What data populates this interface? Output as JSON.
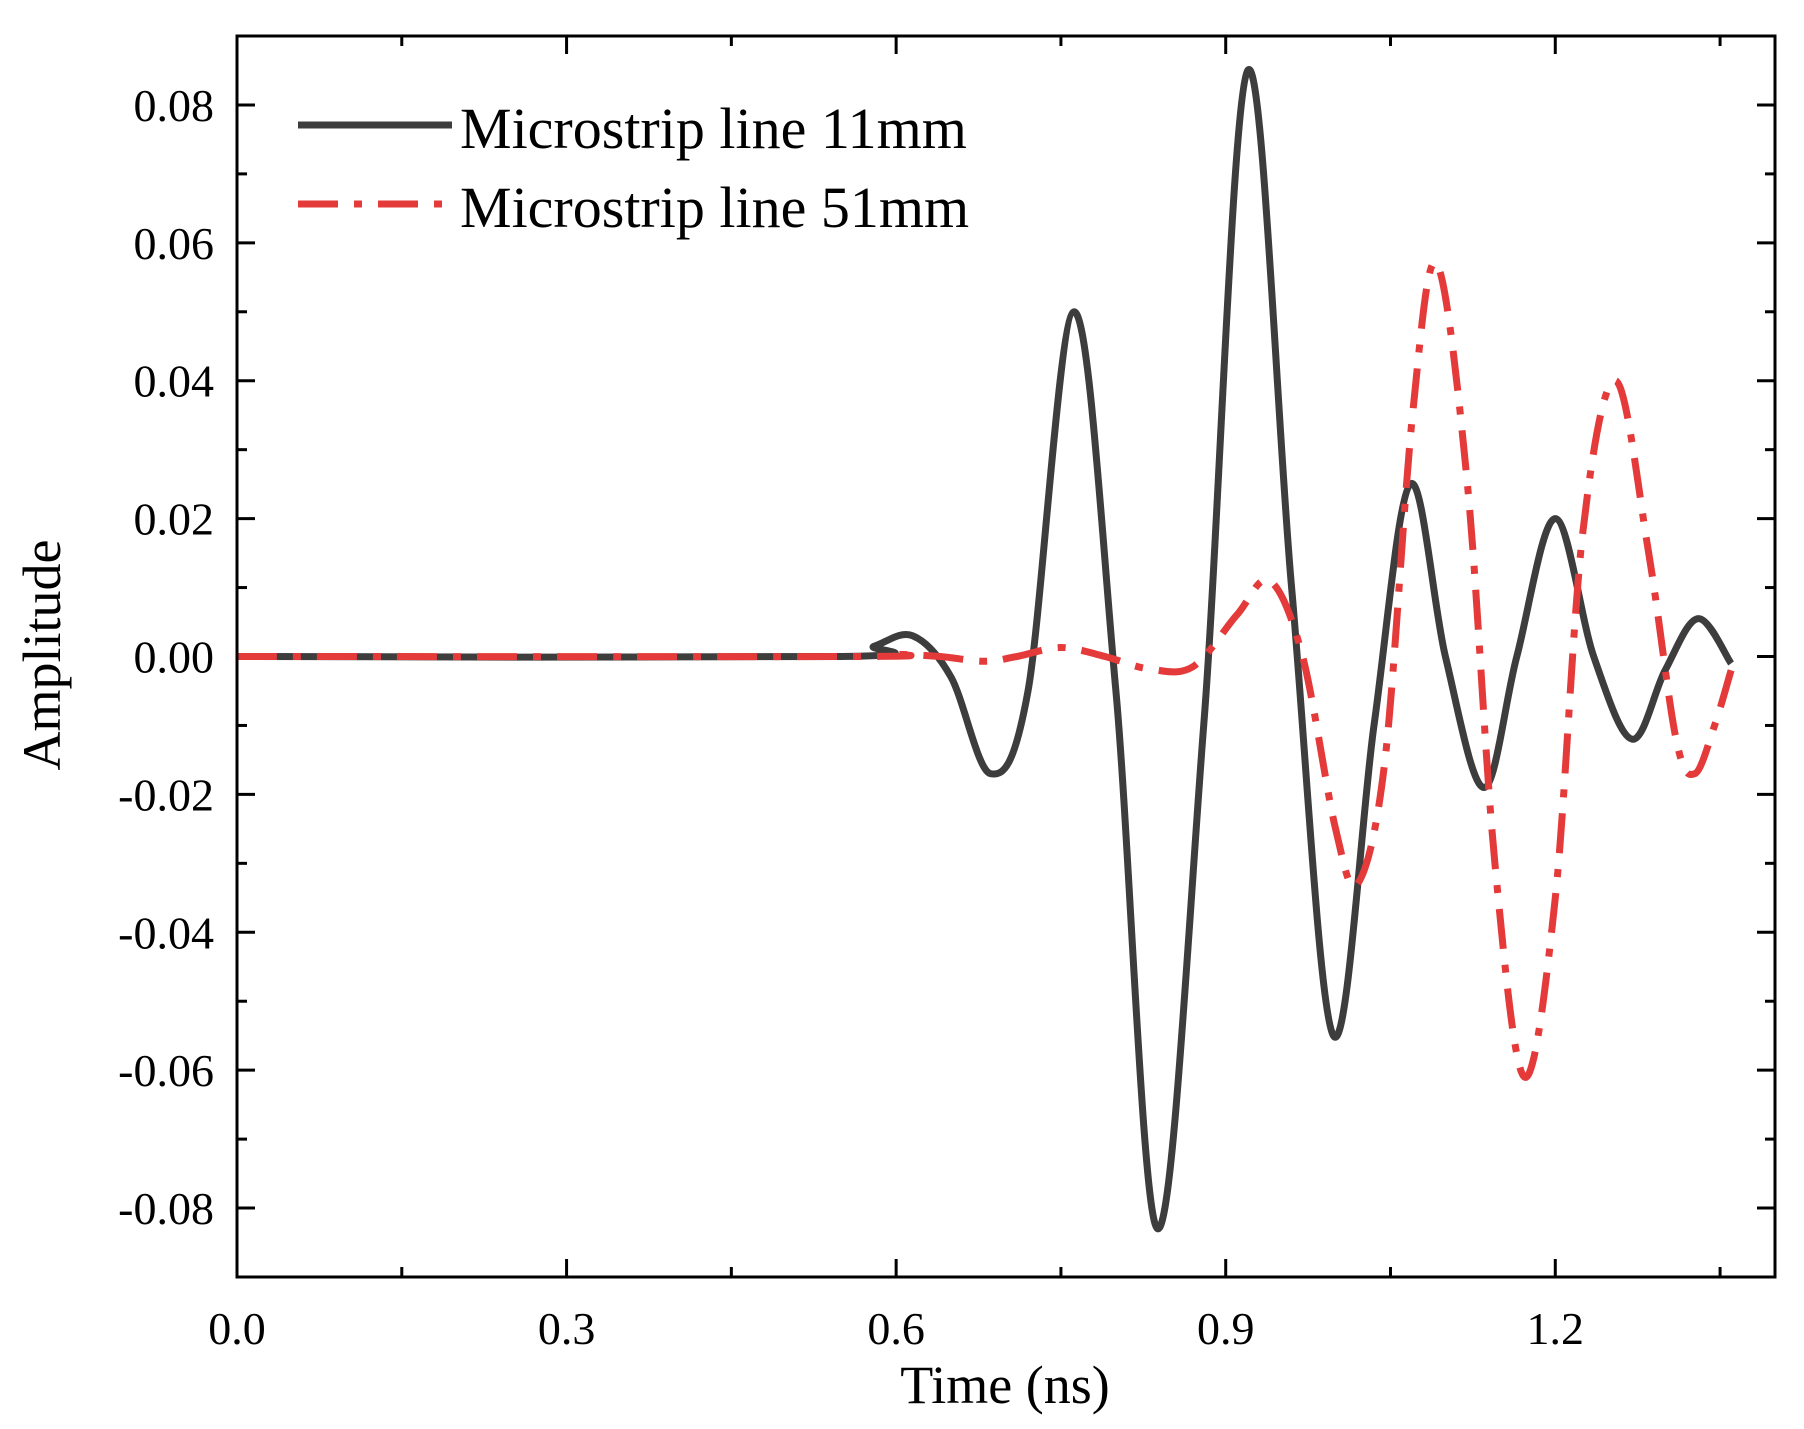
{
  "chart_data": {
    "type": "line",
    "title": "",
    "xlabel": "Time (ns)",
    "ylabel": "Amplitude",
    "xlim": [
      0.0,
      1.4
    ],
    "ylim": [
      -0.09,
      0.09
    ],
    "x_ticks": [
      0.0,
      0.3,
      0.6,
      0.9,
      1.2
    ],
    "x_tick_labels": [
      "0.0",
      "0.3",
      "0.6",
      "0.9",
      "1.2"
    ],
    "y_ticks": [
      0.08,
      0.06,
      0.04,
      0.02,
      0.0,
      -0.02,
      -0.04,
      -0.06,
      -0.08
    ],
    "y_tick_labels": [
      "0.08",
      "0.06",
      "0.04",
      "0.02",
      "0.00",
      "-0.02",
      "-0.04",
      "-0.06",
      "-0.08"
    ],
    "grid": false,
    "legend_position": "top-left",
    "series": [
      {
        "name": "Microstrip line 11mm",
        "color": "#3d3d3d",
        "style": "solid",
        "points": [
          [
            0.0,
            0.0
          ],
          [
            0.55,
            0.0
          ],
          [
            0.58,
            0.0015
          ],
          [
            0.615,
            0.003
          ],
          [
            0.65,
            -0.003
          ],
          [
            0.686,
            -0.017
          ],
          [
            0.72,
            -0.005
          ],
          [
            0.762,
            0.05
          ],
          [
            0.8,
            -0.005
          ],
          [
            0.838,
            -0.083
          ],
          [
            0.88,
            -0.01
          ],
          [
            0.92,
            0.085
          ],
          [
            0.96,
            0.01
          ],
          [
            0.998,
            -0.055
          ],
          [
            1.035,
            -0.01
          ],
          [
            1.068,
            0.025
          ],
          [
            1.1,
            0.0
          ],
          [
            1.135,
            -0.019
          ],
          [
            1.165,
            0.0
          ],
          [
            1.2,
            0.02
          ],
          [
            1.235,
            0.0
          ],
          [
            1.27,
            -0.012
          ],
          [
            1.3,
            -0.002
          ],
          [
            1.33,
            0.0055
          ],
          [
            1.36,
            -0.001
          ]
        ]
      },
      {
        "name": "Microstrip line 51mm",
        "color": "#e53a3a",
        "style": "dashdot",
        "points": [
          [
            0.0,
            0.0
          ],
          [
            0.56,
            0.0
          ],
          [
            0.6,
            0.0003
          ],
          [
            0.64,
            0.0
          ],
          [
            0.68,
            -0.0007
          ],
          [
            0.71,
            0.0
          ],
          [
            0.75,
            0.0013
          ],
          [
            0.79,
            0.0
          ],
          [
            0.83,
            -0.0018
          ],
          [
            0.87,
            -0.0015
          ],
          [
            0.91,
            0.006
          ],
          [
            0.94,
            0.011
          ],
          [
            0.97,
            0.0
          ],
          [
            1.0,
            -0.025
          ],
          [
            1.02,
            -0.033
          ],
          [
            1.045,
            -0.015
          ],
          [
            1.07,
            0.035
          ],
          [
            1.092,
            0.057
          ],
          [
            1.12,
            0.025
          ],
          [
            1.145,
            -0.03
          ],
          [
            1.172,
            -0.061
          ],
          [
            1.2,
            -0.035
          ],
          [
            1.225,
            0.018
          ],
          [
            1.255,
            0.04
          ],
          [
            1.285,
            0.015
          ],
          [
            1.31,
            -0.012
          ],
          [
            1.327,
            -0.017
          ],
          [
            1.345,
            -0.01
          ],
          [
            1.36,
            -0.002
          ]
        ]
      }
    ]
  }
}
